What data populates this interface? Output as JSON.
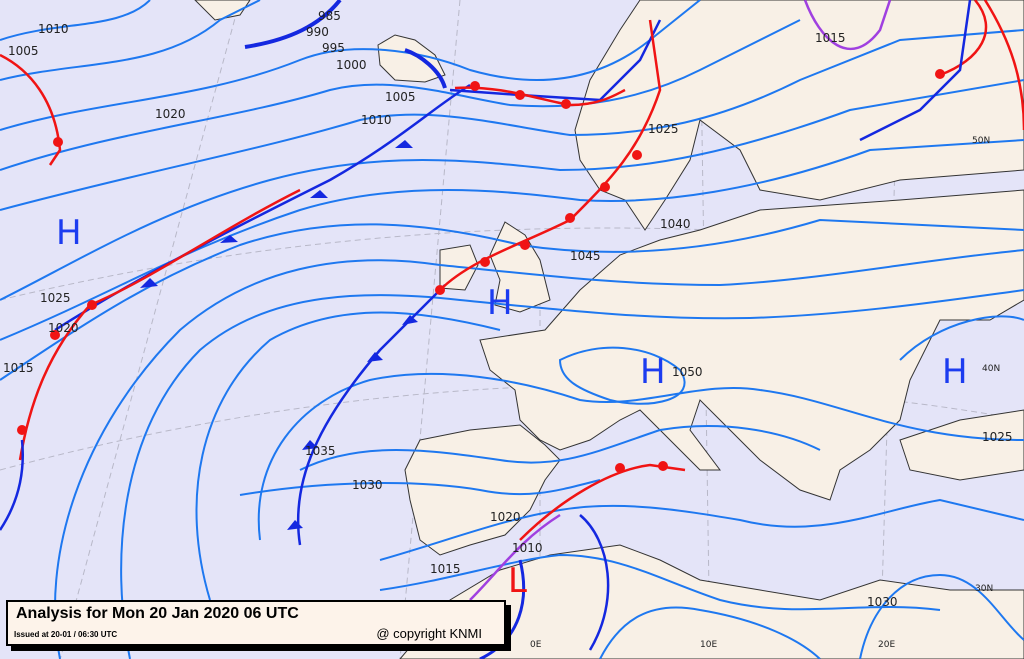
{
  "caption": {
    "title": "Analysis for Mon 20 Jan 2020 06 UTC",
    "issued": "Issued at 20-01 / 06:30 UTC",
    "copyright": "@ copyright KNMI"
  },
  "isobar_labels": [
    "985",
    "990",
    "995",
    "1000",
    "1005",
    "1010",
    "1020",
    "1025",
    "1020",
    "1015",
    "1035",
    "1030",
    "1015",
    "1020",
    "1010",
    "1045",
    "1040",
    "1025",
    "1050",
    "1025",
    "1030",
    "1015",
    "1005",
    "1010"
  ],
  "pressure_centers": [
    {
      "type": "H",
      "location": "mid-Atlantic"
    },
    {
      "type": "H",
      "location": "British Isles"
    },
    {
      "type": "H",
      "location": "Alps"
    },
    {
      "type": "H",
      "location": "Black Sea"
    },
    {
      "type": "L",
      "location": "Strait of Gibraltar"
    }
  ],
  "graticule_labels": [
    "50N",
    "40N",
    "30N",
    "0E",
    "10E",
    "20E"
  ],
  "colors": {
    "sea": "#e4e4f8",
    "land": "#f8f0e6",
    "isobar": "#1e78f0",
    "cold_front": "#1428e0",
    "warm_front": "#f01414",
    "occluded_front": "#a040e0",
    "high": "#1c3cf0",
    "low": "#f01414"
  }
}
